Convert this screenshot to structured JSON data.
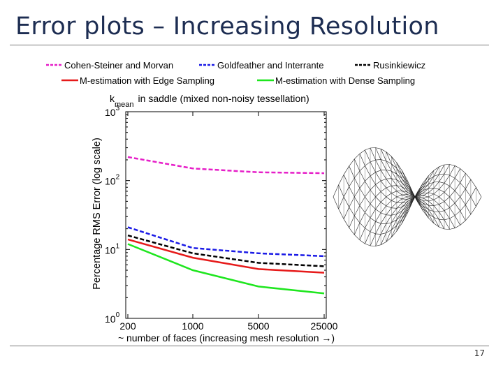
{
  "slide": {
    "title": "Error plots – Increasing Resolution",
    "page_number": "17"
  },
  "colors": {
    "title": "#1d2d52",
    "Cohen-Steiner and Morvan": "#e61ec8",
    "Goldfeather and Interrante": "#1a1ae6",
    "Rusinkiewicz": "#000000",
    "M-estimation with Edge Sampling": "#e61a1a",
    "M-estimation with Dense Sampling": "#1ee61e"
  },
  "chart_data": {
    "type": "line",
    "title_k": "k",
    "title_sub": "mean",
    "title_rest": "in saddle (mixed non-noisy tessellation)",
    "xlabel": "~ number of faces (increasing mesh resolution →)",
    "ylabel": "Percentage RMS Error (log scale)",
    "x": [
      "200",
      "1000",
      "5000",
      "25000"
    ],
    "y_scale": "log",
    "ylim": [
      1,
      1000
    ],
    "y_ticks": [
      {
        "base": "10",
        "exp": "0",
        "value": 1
      },
      {
        "base": "10",
        "exp": "1",
        "value": 10
      },
      {
        "base": "10",
        "exp": "2",
        "value": 100
      },
      {
        "base": "10",
        "exp": "3",
        "value": 1000
      }
    ],
    "grid": false,
    "legend_position": "top",
    "series": [
      {
        "name": "Cohen-Steiner and Morvan",
        "style": "dashed",
        "values": [
          220,
          150,
          132,
          128
        ]
      },
      {
        "name": "Goldfeather and Interrante",
        "style": "dashed",
        "values": [
          21,
          10.5,
          8.8,
          8.0
        ]
      },
      {
        "name": "Rusinkiewicz",
        "style": "dashed",
        "values": [
          16,
          8.8,
          6.4,
          5.7
        ]
      },
      {
        "name": "M-estimation with Edge Sampling",
        "style": "solid",
        "values": [
          14,
          7.6,
          5.2,
          4.6
        ]
      },
      {
        "name": "M-estimation with Dense Sampling",
        "style": "solid",
        "values": [
          12,
          5.0,
          2.9,
          2.3
        ]
      }
    ]
  }
}
